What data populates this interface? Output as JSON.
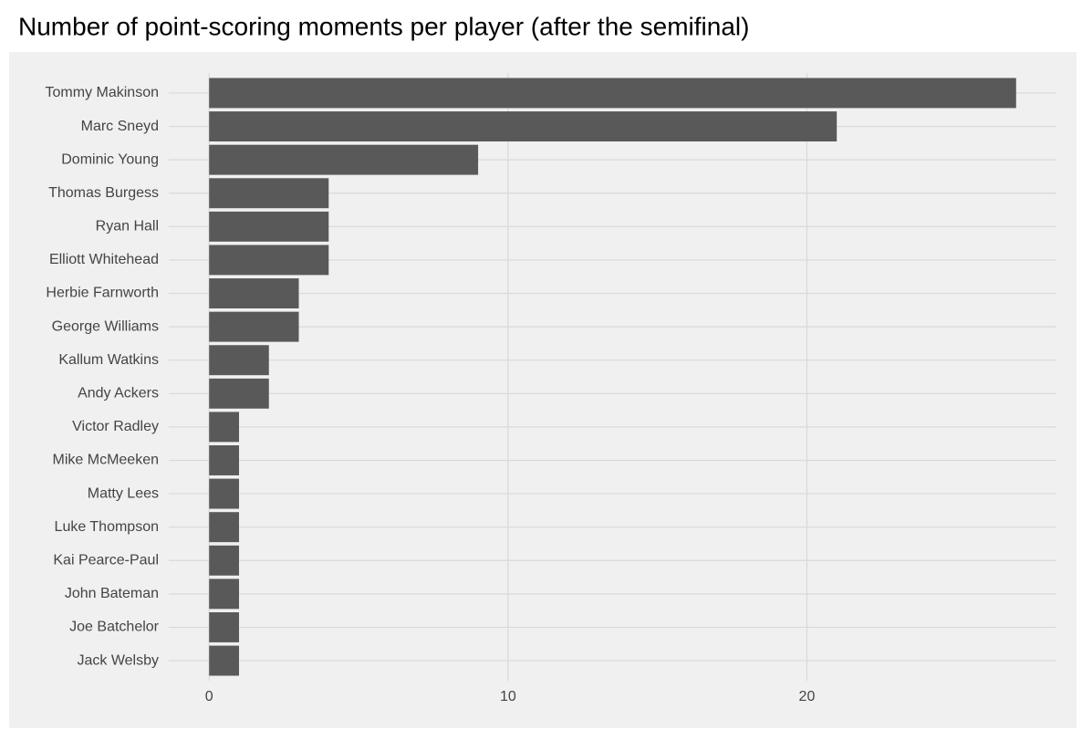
{
  "chart_data": {
    "type": "bar",
    "orientation": "horizontal",
    "title": "Number of point-scoring moments per player (after the semifinal)",
    "categories": [
      "Tommy Makinson",
      "Marc Sneyd",
      "Dominic Young",
      "Thomas Burgess",
      "Ryan Hall",
      "Elliott Whitehead",
      "Herbie Farnworth",
      "George Williams",
      "Kallum Watkins",
      "Andy Ackers",
      "Victor Radley",
      "Mike McMeeken",
      "Matty Lees",
      "Luke Thompson",
      "Kai Pearce-Paul",
      "John Bateman",
      "Joe Batchelor",
      "Jack Welsby"
    ],
    "values": [
      27,
      21,
      9,
      4,
      4,
      4,
      3,
      3,
      2,
      2,
      1,
      1,
      1,
      1,
      1,
      1,
      1,
      1
    ],
    "color": "#595959",
    "xlim": [
      -1.35,
      28.35
    ],
    "xticks": [
      0,
      10,
      20
    ],
    "grid": true
  }
}
